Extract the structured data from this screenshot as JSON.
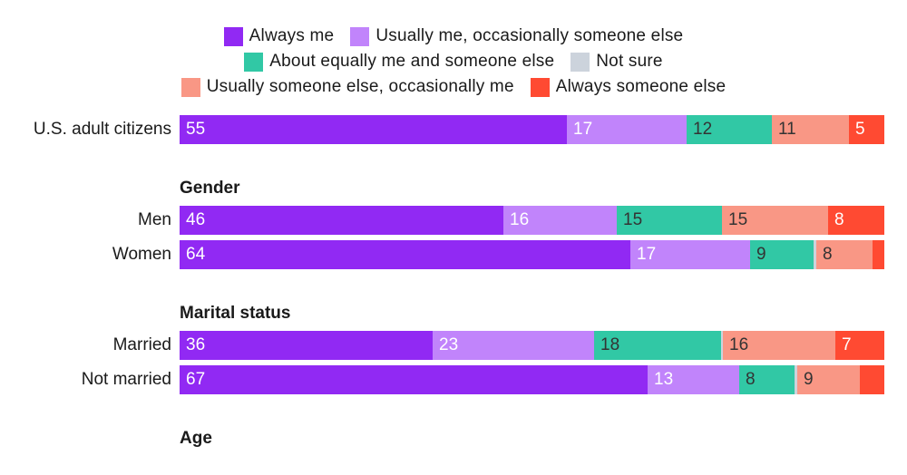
{
  "colors": {
    "always_me": "#9129f3",
    "usually_me": "#c184fb",
    "equal": "#31c8a5",
    "not_sure": "#ccd3dc",
    "usually_else": "#f99785",
    "always_else": "#ff4a32"
  },
  "legend": {
    "rows": [
      [
        {
          "key": "always_me",
          "label": "Always me"
        },
        {
          "key": "usually_me",
          "label": "Usually me, occasionally someone else"
        }
      ],
      [
        {
          "key": "equal",
          "label": "About equally me and someone else"
        },
        {
          "key": "not_sure",
          "label": "Not sure"
        }
      ],
      [
        {
          "key": "usually_else",
          "label": "Usually someone else, occasionally me"
        },
        {
          "key": "always_else",
          "label": "Always someone else"
        }
      ]
    ]
  },
  "chart_data": {
    "type": "bar",
    "orientation": "horizontal",
    "stacked": true,
    "xlim": [
      0,
      100
    ],
    "series_keys": [
      "always_me",
      "usually_me",
      "equal",
      "not_sure",
      "usually_else",
      "always_else"
    ],
    "rows": [
      {
        "kind": "bar",
        "label": "U.S. adult citizens",
        "values": [
          55,
          17,
          12,
          0,
          11,
          5
        ],
        "labels": [
          "55",
          "17",
          "12",
          "",
          "11",
          "5"
        ]
      },
      {
        "kind": "group",
        "label": "Gender"
      },
      {
        "kind": "bar",
        "label": "Men",
        "values": [
          46,
          16,
          15,
          0,
          15,
          8
        ],
        "labels": [
          "46",
          "16",
          "15",
          "",
          "15",
          "8"
        ]
      },
      {
        "kind": "bar",
        "label": "Women",
        "values": [
          64,
          17,
          9,
          0.3,
          8,
          1.7
        ],
        "labels": [
          "64",
          "17",
          "9",
          "",
          "8",
          ""
        ]
      },
      {
        "kind": "group",
        "label": "Marital status"
      },
      {
        "kind": "bar",
        "label": "Married",
        "values": [
          36,
          23,
          18,
          0.3,
          16,
          7
        ],
        "labels": [
          "36",
          "23",
          "18",
          "",
          "16",
          "7"
        ]
      },
      {
        "kind": "bar",
        "label": "Not married",
        "values": [
          67,
          13,
          8,
          0.3,
          9,
          3.5
        ],
        "labels": [
          "67",
          "13",
          "8",
          "",
          "9",
          ""
        ]
      },
      {
        "kind": "group",
        "label": "Age"
      }
    ]
  }
}
